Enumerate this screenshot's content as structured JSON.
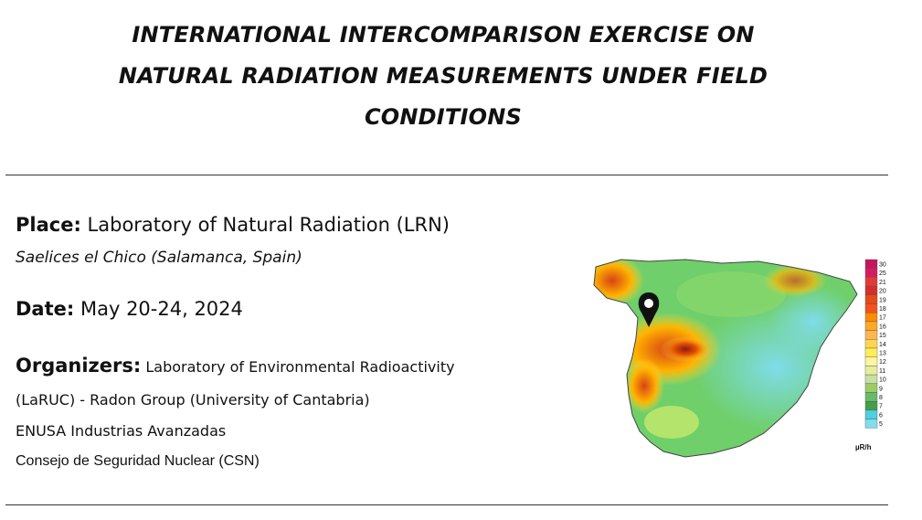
{
  "title": {
    "line1": "INTERNATIONAL INTERCOMPARISON EXERCISE ON",
    "line2": "NATURAL RADIATION MEASUREMENTS UNDER FIELD",
    "line3": "CONDITIONS"
  },
  "place": {
    "label": "Place:",
    "value": "Laboratory of Natural Radiation (LRN)",
    "location": "Saelices el Chico (Salamanca, Spain)"
  },
  "date": {
    "label": "Date:",
    "value": "May 20-24, 2024"
  },
  "organizers": {
    "label": "Organizers:",
    "line1": "Laboratory of Environmental Radioactivity",
    "line2": "(LaRUC) - Radon Group (University of Cantabria)",
    "line3": "ENUSA Industrias Avanzadas",
    "line4": "Consejo de Seguridad Nuclear (CSN)"
  },
  "map": {
    "unit": "µR/h",
    "scale": [
      "30",
      "25",
      "21",
      "20",
      "19",
      "18",
      "17",
      "16",
      "15",
      "14",
      "13",
      "12",
      "11",
      "10",
      "9",
      "8",
      "7",
      "6",
      "5"
    ],
    "scale_colors": [
      "#c2185b",
      "#d81b60",
      "#e53935",
      "#d32f2f",
      "#e64a19",
      "#f4511e",
      "#fb8c00",
      "#ffa726",
      "#ffb74d",
      "#ffd54f",
      "#ffee58",
      "#fff59d",
      "#e6ee9c",
      "#c5e1a5",
      "#9ccc65",
      "#66bb6a",
      "#43a047",
      "#4dd0e1",
      "#80deea"
    ],
    "marker_icon": "location-pin-icon"
  }
}
